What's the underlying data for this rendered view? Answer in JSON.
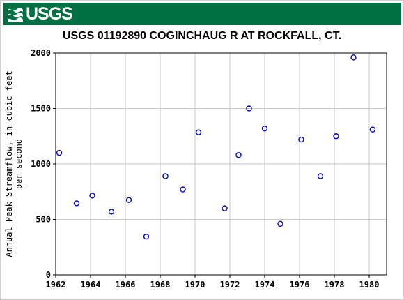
{
  "header": {
    "logo_text": "USGS",
    "logo_icon": "usgs-wave-icon",
    "brand_color": "#006f41"
  },
  "chart_data": {
    "type": "scatter",
    "title": "USGS 01192890 COGINCHAUG R AT ROCKFALL, CT.",
    "xlabel": "",
    "ylabel_lines": [
      "Annual Peak Streamflow, in cubic feet",
      "per second"
    ],
    "xlim": [
      1962,
      1981
    ],
    "ylim": [
      0,
      2000
    ],
    "x_ticks": [
      "1962",
      "1964",
      "1966",
      "1968",
      "1970",
      "1972",
      "1974",
      "1976",
      "1978",
      "1980"
    ],
    "y_ticks": [
      "0",
      "500",
      "1000",
      "1500",
      "2000"
    ],
    "grid": true,
    "marker": "open-circle",
    "marker_color": "#0000cc",
    "series": [
      {
        "points": [
          {
            "x": 1962.2,
            "y": 1100
          },
          {
            "x": 1963.2,
            "y": 645
          },
          {
            "x": 1964.1,
            "y": 715
          },
          {
            "x": 1965.2,
            "y": 570
          },
          {
            "x": 1966.2,
            "y": 675
          },
          {
            "x": 1967.2,
            "y": 345
          },
          {
            "x": 1968.3,
            "y": 890
          },
          {
            "x": 1969.3,
            "y": 770
          },
          {
            "x": 1970.2,
            "y": 1285
          },
          {
            "x": 1971.7,
            "y": 600
          },
          {
            "x": 1972.5,
            "y": 1080
          },
          {
            "x": 1973.1,
            "y": 1500
          },
          {
            "x": 1974.0,
            "y": 1320
          },
          {
            "x": 1974.9,
            "y": 460
          },
          {
            "x": 1976.1,
            "y": 1220
          },
          {
            "x": 1977.2,
            "y": 890
          },
          {
            "x": 1978.1,
            "y": 1250
          },
          {
            "x": 1979.1,
            "y": 1960
          },
          {
            "x": 1980.2,
            "y": 1310
          }
        ]
      }
    ]
  }
}
